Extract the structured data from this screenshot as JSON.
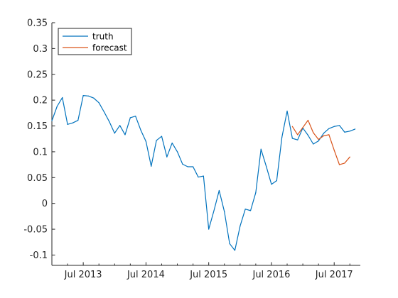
{
  "chart_data": {
    "type": "line",
    "title": "",
    "xlabel": "",
    "ylabel": "",
    "x_unit": "month",
    "xlim": [
      "2013-01",
      "2017-12"
    ],
    "ylim": [
      -0.12,
      0.35
    ],
    "y_ticks": [
      -0.1,
      -0.05,
      0,
      0.05,
      0.1,
      0.15,
      0.2,
      0.25,
      0.3,
      0.35
    ],
    "y_tick_labels": [
      "-0.1",
      "-0.05",
      "0",
      "0.05",
      "0.1",
      "0.15",
      "0.2",
      "0.25",
      "0.3",
      "0.35"
    ],
    "x_ticks": [
      "2013-07",
      "2014-07",
      "2015-07",
      "2016-07",
      "2017-07"
    ],
    "x_tick_labels": [
      "Jul 2013",
      "Jul 2014",
      "Jul 2015",
      "Jul 2016",
      "Jul 2017"
    ],
    "grid": false,
    "legend_position": "top-left",
    "series": [
      {
        "name": "truth",
        "color": "#0072BD",
        "points": [
          [
            "2013-01",
            0.16
          ],
          [
            "2013-02",
            0.188
          ],
          [
            "2013-03",
            0.205
          ],
          [
            "2013-04",
            0.153
          ],
          [
            "2013-05",
            0.156
          ],
          [
            "2013-06",
            0.161
          ],
          [
            "2013-07",
            0.209
          ],
          [
            "2013-08",
            0.208
          ],
          [
            "2013-09",
            0.204
          ],
          [
            "2013-10",
            0.195
          ],
          [
            "2013-11",
            0.177
          ],
          [
            "2013-12",
            0.158
          ],
          [
            "2014-01",
            0.136
          ],
          [
            "2014-02",
            0.151
          ],
          [
            "2014-03",
            0.133
          ],
          [
            "2014-04",
            0.166
          ],
          [
            "2014-05",
            0.169
          ],
          [
            "2014-06",
            0.142
          ],
          [
            "2014-07",
            0.12
          ],
          [
            "2014-08",
            0.072
          ],
          [
            "2014-09",
            0.122
          ],
          [
            "2014-10",
            0.13
          ],
          [
            "2014-11",
            0.09
          ],
          [
            "2014-12",
            0.117
          ],
          [
            "2015-01",
            0.1
          ],
          [
            "2015-02",
            0.076
          ],
          [
            "2015-03",
            0.071
          ],
          [
            "2015-04",
            0.071
          ],
          [
            "2015-05",
            0.051
          ],
          [
            "2015-06",
            0.053
          ],
          [
            "2015-07",
            -0.05
          ],
          [
            "2015-08",
            -0.014
          ],
          [
            "2015-09",
            0.025
          ],
          [
            "2015-10",
            -0.016
          ],
          [
            "2015-11",
            -0.078
          ],
          [
            "2015-12",
            -0.091
          ],
          [
            "2016-01",
            -0.044
          ],
          [
            "2016-02",
            -0.011
          ],
          [
            "2016-03",
            -0.014
          ],
          [
            "2016-04",
            0.021
          ],
          [
            "2016-05",
            0.105
          ],
          [
            "2016-06",
            0.072
          ],
          [
            "2016-07",
            0.037
          ],
          [
            "2016-08",
            0.044
          ],
          [
            "2016-09",
            0.128
          ],
          [
            "2016-10",
            0.179
          ],
          [
            "2016-11",
            0.126
          ],
          [
            "2016-12",
            0.123
          ],
          [
            "2017-01",
            0.146
          ],
          [
            "2017-02",
            0.132
          ],
          [
            "2017-03",
            0.115
          ],
          [
            "2017-04",
            0.121
          ],
          [
            "2017-05",
            0.136
          ],
          [
            "2017-06",
            0.145
          ],
          [
            "2017-07",
            0.149
          ],
          [
            "2017-08",
            0.151
          ],
          [
            "2017-09",
            0.138
          ],
          [
            "2017-10",
            0.14
          ],
          [
            "2017-11",
            0.144
          ]
        ]
      },
      {
        "name": "forecast",
        "color": "#D95319",
        "points": [
          [
            "2016-11",
            0.149
          ],
          [
            "2016-12",
            0.133
          ],
          [
            "2017-01",
            0.147
          ],
          [
            "2017-02",
            0.161
          ],
          [
            "2017-03",
            0.137
          ],
          [
            "2017-04",
            0.124
          ],
          [
            "2017-05",
            0.131
          ],
          [
            "2017-06",
            0.133
          ],
          [
            "2017-07",
            0.103
          ],
          [
            "2017-08",
            0.075
          ],
          [
            "2017-09",
            0.078
          ],
          [
            "2017-10",
            0.09
          ]
        ]
      }
    ]
  }
}
